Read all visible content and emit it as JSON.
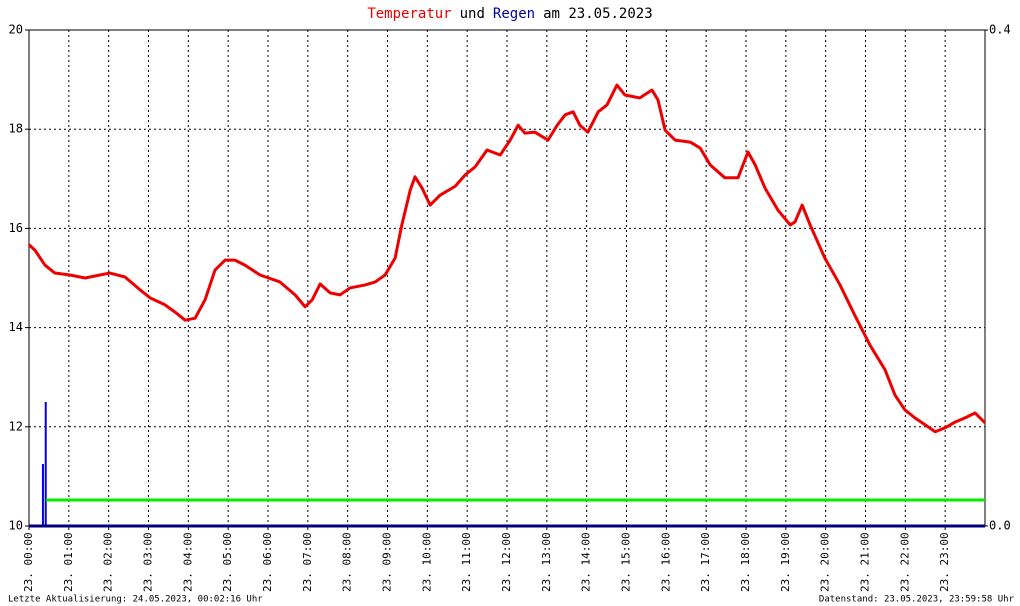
{
  "chart_data": {
    "type": "line",
    "title": [
      {
        "text": "Temperatur",
        "color": "#ee0000"
      },
      {
        "text": "und",
        "color": "#000000"
      },
      {
        "text": "Regen",
        "color": "#000099"
      },
      {
        "text": "am 23.05.2023",
        "color": "#000000"
      }
    ],
    "xlim": [
      0,
      24
    ],
    "xticks": [
      {
        "value": 0,
        "label": "23. 00:00"
      },
      {
        "value": 1,
        "label": "23. 01:00"
      },
      {
        "value": 2,
        "label": "23. 02:00"
      },
      {
        "value": 3,
        "label": "23. 03:00"
      },
      {
        "value": 4,
        "label": "23. 04:00"
      },
      {
        "value": 5,
        "label": "23. 05:00"
      },
      {
        "value": 6,
        "label": "23. 06:00"
      },
      {
        "value": 7,
        "label": "23. 07:00"
      },
      {
        "value": 8,
        "label": "23. 08:00"
      },
      {
        "value": 9,
        "label": "23. 09:00"
      },
      {
        "value": 10,
        "label": "23. 10:00"
      },
      {
        "value": 11,
        "label": "23. 11:00"
      },
      {
        "value": 12,
        "label": "23. 12:00"
      },
      {
        "value": 13,
        "label": "23. 13:00"
      },
      {
        "value": 14,
        "label": "23. 14:00"
      },
      {
        "value": 15,
        "label": "23. 15:00"
      },
      {
        "value": 16,
        "label": "23. 16:00"
      },
      {
        "value": 17,
        "label": "23. 17:00"
      },
      {
        "value": 18,
        "label": "23. 18:00"
      },
      {
        "value": 19,
        "label": "23. 19:00"
      },
      {
        "value": 20,
        "label": "23. 20:00"
      },
      {
        "value": 21,
        "label": "23. 21:00"
      },
      {
        "value": 22,
        "label": "23. 22:00"
      },
      {
        "value": 23,
        "label": "23. 23:00"
      }
    ],
    "ylim": [
      10,
      20
    ],
    "yticks": [
      10,
      12,
      14,
      16,
      18,
      20
    ],
    "y2lim": [
      0,
      0.4
    ],
    "y2ticks": [
      {
        "value": 0,
        "label": "0.0"
      },
      0.4
    ],
    "grid": true,
    "series": [
      {
        "type": "line",
        "color": "#ee0000",
        "x": [
          0,
          0.15,
          0.4,
          0.65,
          1.03,
          1.41,
          1.78,
          2.03,
          2.41,
          2.79,
          3.04,
          3.41,
          3.67,
          3.92,
          4.17,
          4.42,
          4.67,
          4.92,
          5.17,
          5.42,
          5.8,
          6.3,
          6.68,
          6.93,
          7.11,
          7.31,
          7.56,
          7.81,
          8.06,
          8.44,
          8.69,
          8.94,
          9.19,
          9.36,
          9.57,
          9.69,
          9.87,
          10.07,
          10.32,
          10.7,
          10.95,
          11.2,
          11.5,
          11.83,
          12.08,
          12.28,
          12.45,
          12.7,
          13.03,
          13.26,
          13.46,
          13.66,
          13.83,
          14.03,
          14.29,
          14.51,
          14.76,
          14.96,
          15.33,
          15.64,
          15.79,
          15.97,
          16.22,
          16.6,
          16.85,
          17.1,
          17.47,
          17.8,
          18.05,
          18.23,
          18.48,
          18.8,
          19.11,
          19.23,
          19.41,
          19.61,
          19.98,
          20.36,
          20.73,
          21.11,
          21.49,
          21.74,
          21.99,
          22.24,
          22.5,
          22.75,
          23.0,
          23.26,
          23.5,
          23.75,
          24.0
        ],
        "values": [
          15.67,
          15.56,
          15.26,
          15.1,
          15.06,
          15.0,
          15.06,
          15.1,
          15.02,
          14.76,
          14.6,
          14.46,
          14.31,
          14.15,
          14.19,
          14.56,
          15.16,
          15.36,
          15.36,
          15.26,
          15.06,
          14.92,
          14.66,
          14.42,
          14.56,
          14.88,
          14.7,
          14.66,
          14.8,
          14.86,
          14.92,
          15.06,
          15.4,
          16.07,
          16.77,
          17.04,
          16.81,
          16.47,
          16.67,
          16.85,
          17.08,
          17.24,
          17.58,
          17.48,
          17.78,
          18.08,
          17.92,
          17.94,
          17.78,
          18.08,
          18.29,
          18.35,
          18.08,
          17.94,
          18.35,
          18.49,
          18.89,
          18.69,
          18.63,
          18.79,
          18.59,
          17.98,
          17.78,
          17.74,
          17.62,
          17.28,
          17.02,
          17.02,
          17.54,
          17.28,
          16.81,
          16.37,
          16.07,
          16.13,
          16.47,
          16.07,
          15.4,
          14.86,
          14.25,
          13.65,
          13.15,
          12.64,
          12.34,
          12.18,
          12.04,
          11.9,
          11.98,
          12.1,
          12.18,
          12.28,
          12.08
        ]
      },
      {
        "type": "bar",
        "axis": "y2",
        "color": "#0000ee",
        "x": [
          0.35,
          0.42
        ],
        "values": [
          0.05,
          0.1
        ]
      },
      {
        "type": "line",
        "axis": "y2",
        "color": "#00ee00",
        "x": [
          0.43,
          24
        ],
        "values": [
          0.021,
          0.021
        ]
      }
    ],
    "footer_left": "Letzte Aktualisierung: 24.05.2023, 00:02:16 Uhr",
    "footer_right": "Datenstand: 23.05.2023, 23:59:58 Uhr"
  }
}
